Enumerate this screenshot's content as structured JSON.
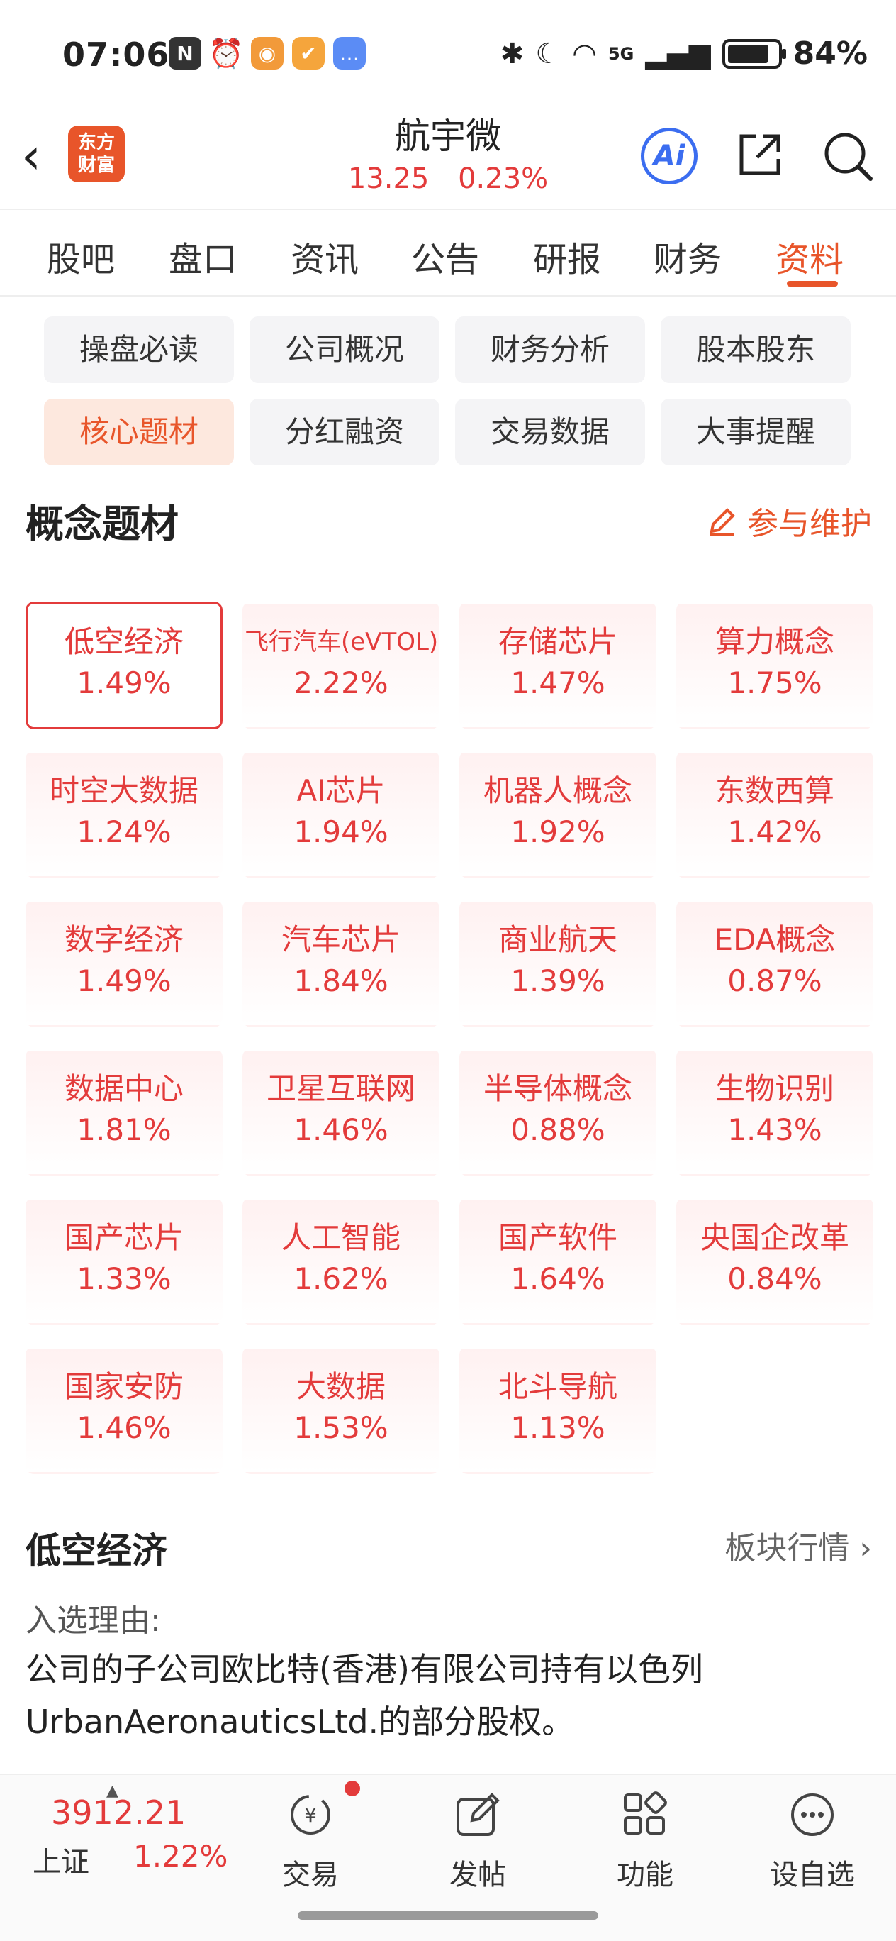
{
  "status_bar": {
    "time": "07:06",
    "network": "5G",
    "battery": "84%",
    "battery_level": 0.84
  },
  "header": {
    "logo_line1": "东方",
    "logo_line2": "财富",
    "stock_name": "航宇微",
    "price": "13.25",
    "change_pct": "0.23%",
    "ai_label": "Ai"
  },
  "tabs": [
    "股吧",
    "盘口",
    "资讯",
    "公告",
    "研报",
    "财务",
    "资料"
  ],
  "active_tab": "资料",
  "sub_menu": [
    "操盘必读",
    "公司概况",
    "财务分析",
    "股本股东",
    "核心题材",
    "分红融资",
    "交易数据",
    "大事提醒"
  ],
  "section": {
    "title": "概念题材",
    "maintain": "参与维护"
  },
  "concepts": [
    {
      "name": "低空经济",
      "pct": "1.49%"
    },
    {
      "name": "飞行汽车(eVTOL)",
      "pct": "2.22%"
    },
    {
      "name": "存储芯片",
      "pct": "1.47%"
    },
    {
      "name": "算力概念",
      "pct": "1.75%"
    },
    {
      "name": "时空大数据",
      "pct": "1.24%"
    },
    {
      "name": "AI芯片",
      "pct": "1.94%"
    },
    {
      "name": "机器人概念",
      "pct": "1.92%"
    },
    {
      "name": "东数西算",
      "pct": "1.42%"
    },
    {
      "name": "数字经济",
      "pct": "1.49%"
    },
    {
      "name": "汽车芯片",
      "pct": "1.84%"
    },
    {
      "name": "商业航天",
      "pct": "1.39%"
    },
    {
      "name": "EDA概念",
      "pct": "0.87%"
    },
    {
      "name": "数据中心",
      "pct": "1.81%"
    },
    {
      "name": "卫星互联网",
      "pct": "1.46%"
    },
    {
      "name": "半导体概念",
      "pct": "0.88%"
    },
    {
      "name": "生物识别",
      "pct": "1.43%"
    },
    {
      "name": "国产芯片",
      "pct": "1.33%"
    },
    {
      "name": "人工智能",
      "pct": "1.62%"
    },
    {
      "name": "国产软件",
      "pct": "1.64%"
    },
    {
      "name": "央国企改革",
      "pct": "0.84%"
    },
    {
      "name": "国家安防",
      "pct": "1.46%"
    },
    {
      "name": "大数据",
      "pct": "1.53%"
    },
    {
      "name": "北斗导航",
      "pct": "1.13%"
    }
  ],
  "detail": {
    "title": "低空经济",
    "link": "板块行情",
    "reason_label": "入选理由:",
    "reason_text": "公司的子公司欧比特(香港)有限公司持有以色列UrbanAeronauticsLtd.的部分股权。"
  },
  "bottom_bar": {
    "index_value": "3912.21",
    "index_name": "上证",
    "index_pct": "1.22%",
    "nav": [
      "交易",
      "发帖",
      "功能",
      "设自选"
    ]
  },
  "colors": {
    "accent": "#e8552a",
    "up_red": "#e33b3b",
    "ai_blue": "#3b6df0"
  }
}
